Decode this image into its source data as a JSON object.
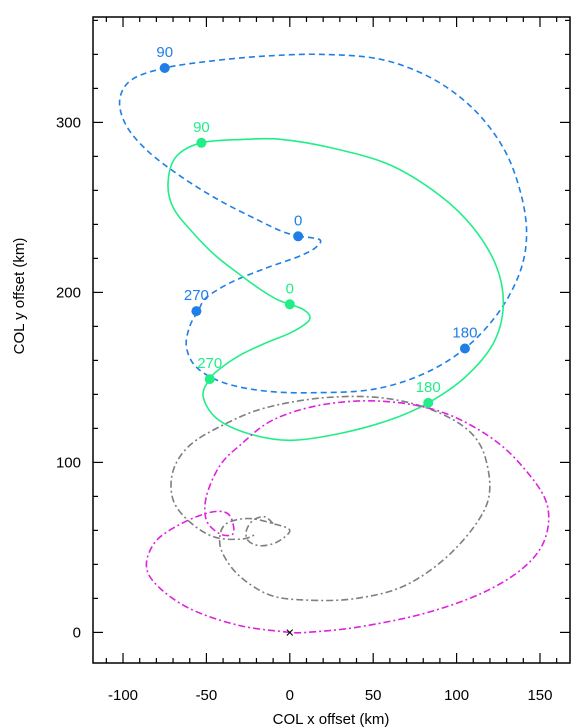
{
  "chart_data": {
    "type": "line",
    "title": "",
    "xlabel": "COL x offset (km)",
    "ylabel": "COL y offset (km)",
    "xlim": [
      -118,
      168
    ],
    "ylim": [
      -18,
      362
    ],
    "xticks": [
      -100,
      -50,
      0,
      50,
      100,
      150
    ],
    "yticks": [
      0,
      100,
      200,
      300
    ],
    "colors": {
      "blue": "#1f7fe6",
      "green": "#22ee88",
      "gray": "#7f7f7f",
      "magenta": "#dd22dd"
    },
    "series": [
      {
        "key": "blue",
        "style": "dashed",
        "points": [
          [
            5,
            233
          ],
          [
            18,
            231
          ],
          [
            15,
            226
          ],
          [
            5,
            221
          ],
          [
            -15,
            214
          ],
          [
            -35,
            206
          ],
          [
            -50,
            197
          ],
          [
            -55,
            189
          ],
          [
            -60,
            180
          ],
          [
            -62,
            168
          ],
          [
            -56,
            156
          ],
          [
            -40,
            147
          ],
          [
            -15,
            142
          ],
          [
            15,
            141
          ],
          [
            50,
            143
          ],
          [
            80,
            152
          ],
          [
            105,
            167
          ],
          [
            125,
            188
          ],
          [
            138,
            212
          ],
          [
            142,
            235
          ],
          [
            138,
            260
          ],
          [
            128,
            285
          ],
          [
            110,
            308
          ],
          [
            85,
            326
          ],
          [
            55,
            337
          ],
          [
            20,
            340
          ],
          [
            -15,
            339
          ],
          [
            -48,
            336
          ],
          [
            -75,
            332
          ],
          [
            -95,
            325
          ],
          [
            -102,
            313
          ],
          [
            -98,
            298
          ],
          [
            -85,
            283
          ],
          [
            -65,
            268
          ],
          [
            -42,
            254
          ],
          [
            -20,
            243
          ],
          [
            -5,
            236
          ],
          [
            5,
            233
          ]
        ],
        "markers": [
          {
            "label": "0",
            "x": 5,
            "y": 233
          },
          {
            "label": "270",
            "x": -56,
            "y": 189
          },
          {
            "label": "180",
            "x": 105,
            "y": 167
          },
          {
            "label": "90",
            "x": -75,
            "y": 332
          }
        ]
      },
      {
        "key": "green",
        "style": "solid",
        "points": [
          [
            0,
            193
          ],
          [
            8,
            190
          ],
          [
            12,
            186
          ],
          [
            10,
            182
          ],
          [
            0,
            176
          ],
          [
            -15,
            170
          ],
          [
            -30,
            163
          ],
          [
            -42,
            155
          ],
          [
            -48,
            149
          ],
          [
            -52,
            139
          ],
          [
            -44,
            126
          ],
          [
            -25,
            117
          ],
          [
            0,
            113
          ],
          [
            30,
            117
          ],
          [
            60,
            125
          ],
          [
            83,
            135
          ],
          [
            105,
            150
          ],
          [
            122,
            170
          ],
          [
            128,
            192
          ],
          [
            124,
            215
          ],
          [
            110,
            238
          ],
          [
            90,
            257
          ],
          [
            60,
            275
          ],
          [
            25,
            285
          ],
          [
            -5,
            290
          ],
          [
            -28,
            290
          ],
          [
            -53,
            288
          ],
          [
            -68,
            280
          ],
          [
            -73,
            265
          ],
          [
            -70,
            250
          ],
          [
            -58,
            235
          ],
          [
            -45,
            222
          ],
          [
            -32,
            212
          ],
          [
            -18,
            202
          ],
          [
            -8,
            196
          ],
          [
            0,
            193
          ]
        ],
        "markers": [
          {
            "label": "0",
            "x": 0,
            "y": 193
          },
          {
            "label": "270",
            "x": -48,
            "y": 149
          },
          {
            "label": "180",
            "x": 83,
            "y": 135
          },
          {
            "label": "90",
            "x": -53,
            "y": 288
          }
        ]
      },
      {
        "key": "gray",
        "style": "dashdot",
        "points": [
          [
            -10,
            64
          ],
          [
            -15,
            68
          ],
          [
            -22,
            66
          ],
          [
            -26,
            60
          ],
          [
            -25,
            54
          ],
          [
            -18,
            51
          ],
          [
            -8,
            53
          ],
          [
            0,
            60
          ],
          [
            -10,
            64
          ],
          [
            -25,
            67
          ],
          [
            -38,
            64
          ],
          [
            -42,
            56
          ],
          [
            -40,
            46
          ],
          [
            -30,
            33
          ],
          [
            -12,
            22
          ],
          [
            10,
            19
          ],
          [
            40,
            20
          ],
          [
            70,
            28
          ],
          [
            98,
            48
          ],
          [
            118,
            75
          ],
          [
            118,
            100
          ],
          [
            108,
            118
          ],
          [
            85,
            131
          ],
          [
            55,
            138
          ],
          [
            20,
            138
          ],
          [
            -15,
            132
          ],
          [
            -40,
            122
          ],
          [
            -60,
            110
          ],
          [
            -70,
            95
          ],
          [
            -70,
            78
          ],
          [
            -60,
            65
          ],
          [
            -45,
            56
          ],
          [
            -28,
            55
          ],
          [
            -20,
            58
          ]
        ]
      },
      {
        "key": "magenta",
        "style": "dashdot",
        "points": [
          [
            0,
            0
          ],
          [
            -30,
            4
          ],
          [
            -60,
            14
          ],
          [
            -80,
            28
          ],
          [
            -86,
            40
          ],
          [
            -80,
            54
          ],
          [
            -65,
            64
          ],
          [
            -50,
            70
          ],
          [
            -40,
            71
          ],
          [
            -35,
            67
          ],
          [
            -34,
            58
          ],
          [
            -42,
            58
          ],
          [
            -50,
            66
          ],
          [
            -50,
            80
          ],
          [
            -42,
            98
          ],
          [
            -30,
            110
          ],
          [
            -10,
            125
          ],
          [
            20,
            134
          ],
          [
            55,
            136
          ],
          [
            90,
            130
          ],
          [
            120,
            115
          ],
          [
            140,
            97
          ],
          [
            154,
            76
          ],
          [
            153,
            55
          ],
          [
            140,
            38
          ],
          [
            115,
            23
          ],
          [
            80,
            11
          ],
          [
            40,
            3
          ],
          [
            10,
            0
          ],
          [
            0,
            0
          ]
        ]
      }
    ],
    "origin_marker": {
      "symbol": "×",
      "x": 0,
      "y": 0
    }
  }
}
